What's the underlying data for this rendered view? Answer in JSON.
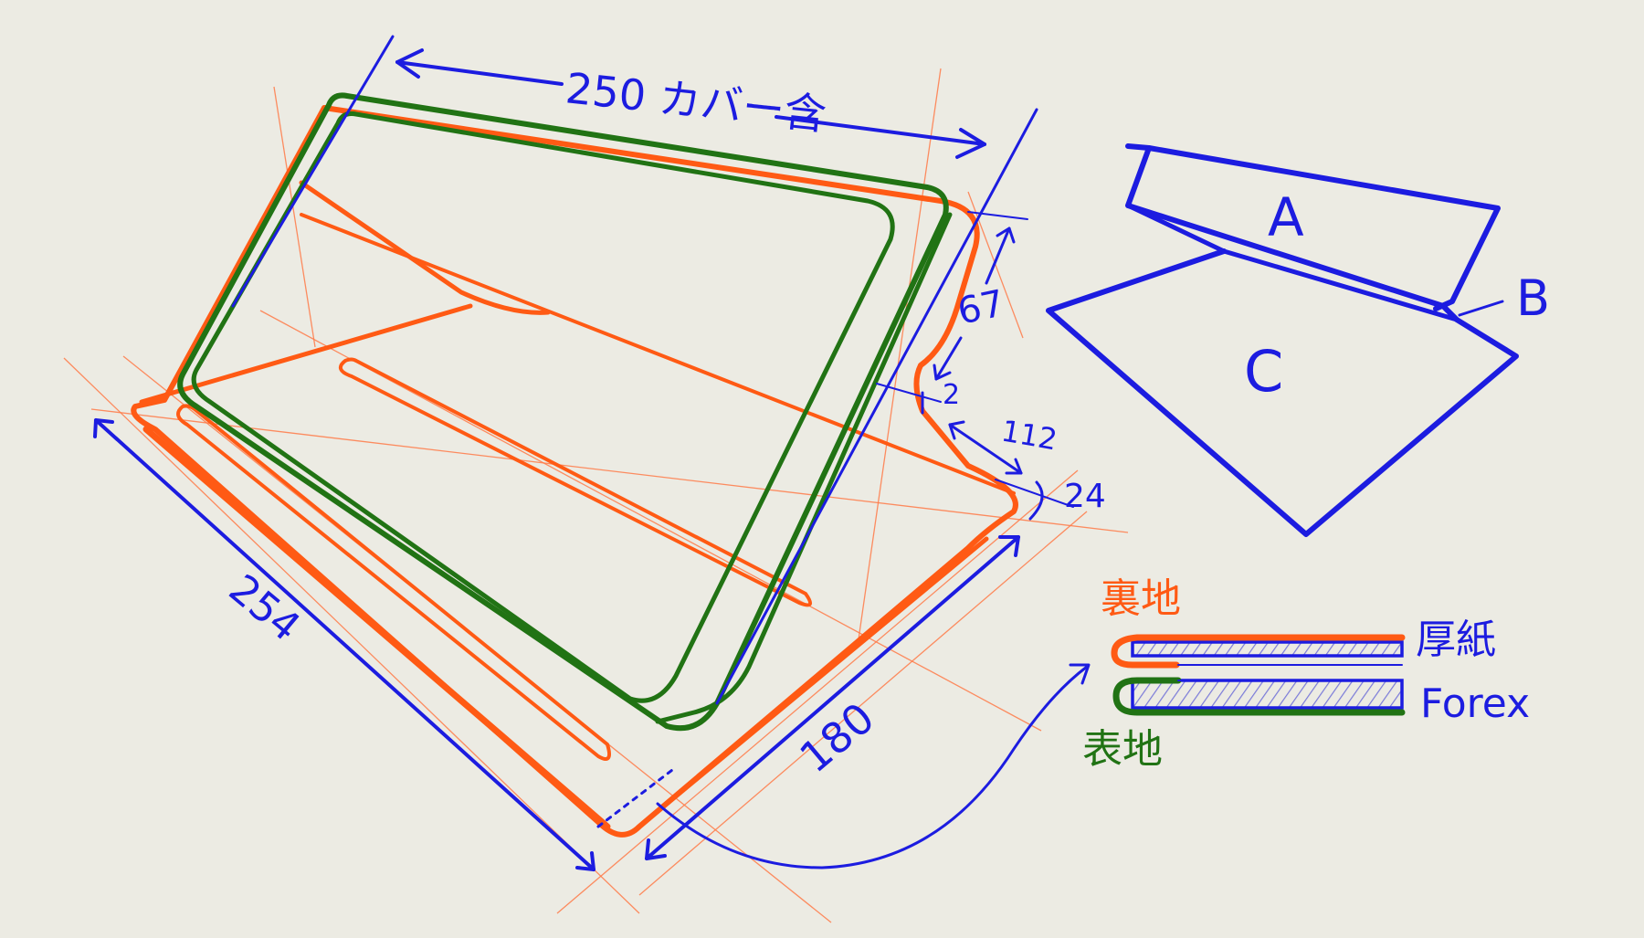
{
  "colors": {
    "background": "#ecebe3",
    "blue": "#1c1ce0",
    "orange": "#ff5a14",
    "green": "#217314",
    "hatch": "#7a7ad8"
  },
  "dimensions": {
    "top_width": "250 カバー含",
    "front_height": "67",
    "gap": "2",
    "fold_depth": "112",
    "lip": "24",
    "base_length": "254",
    "base_depth": "180"
  },
  "fold_diagram": {
    "label_a": "A",
    "label_b": "B",
    "label_c": "C"
  },
  "cross_section": {
    "inner_fabric": "裏地",
    "cardboard": "厚紙",
    "forex": "Forex",
    "outer_fabric": "表地"
  }
}
